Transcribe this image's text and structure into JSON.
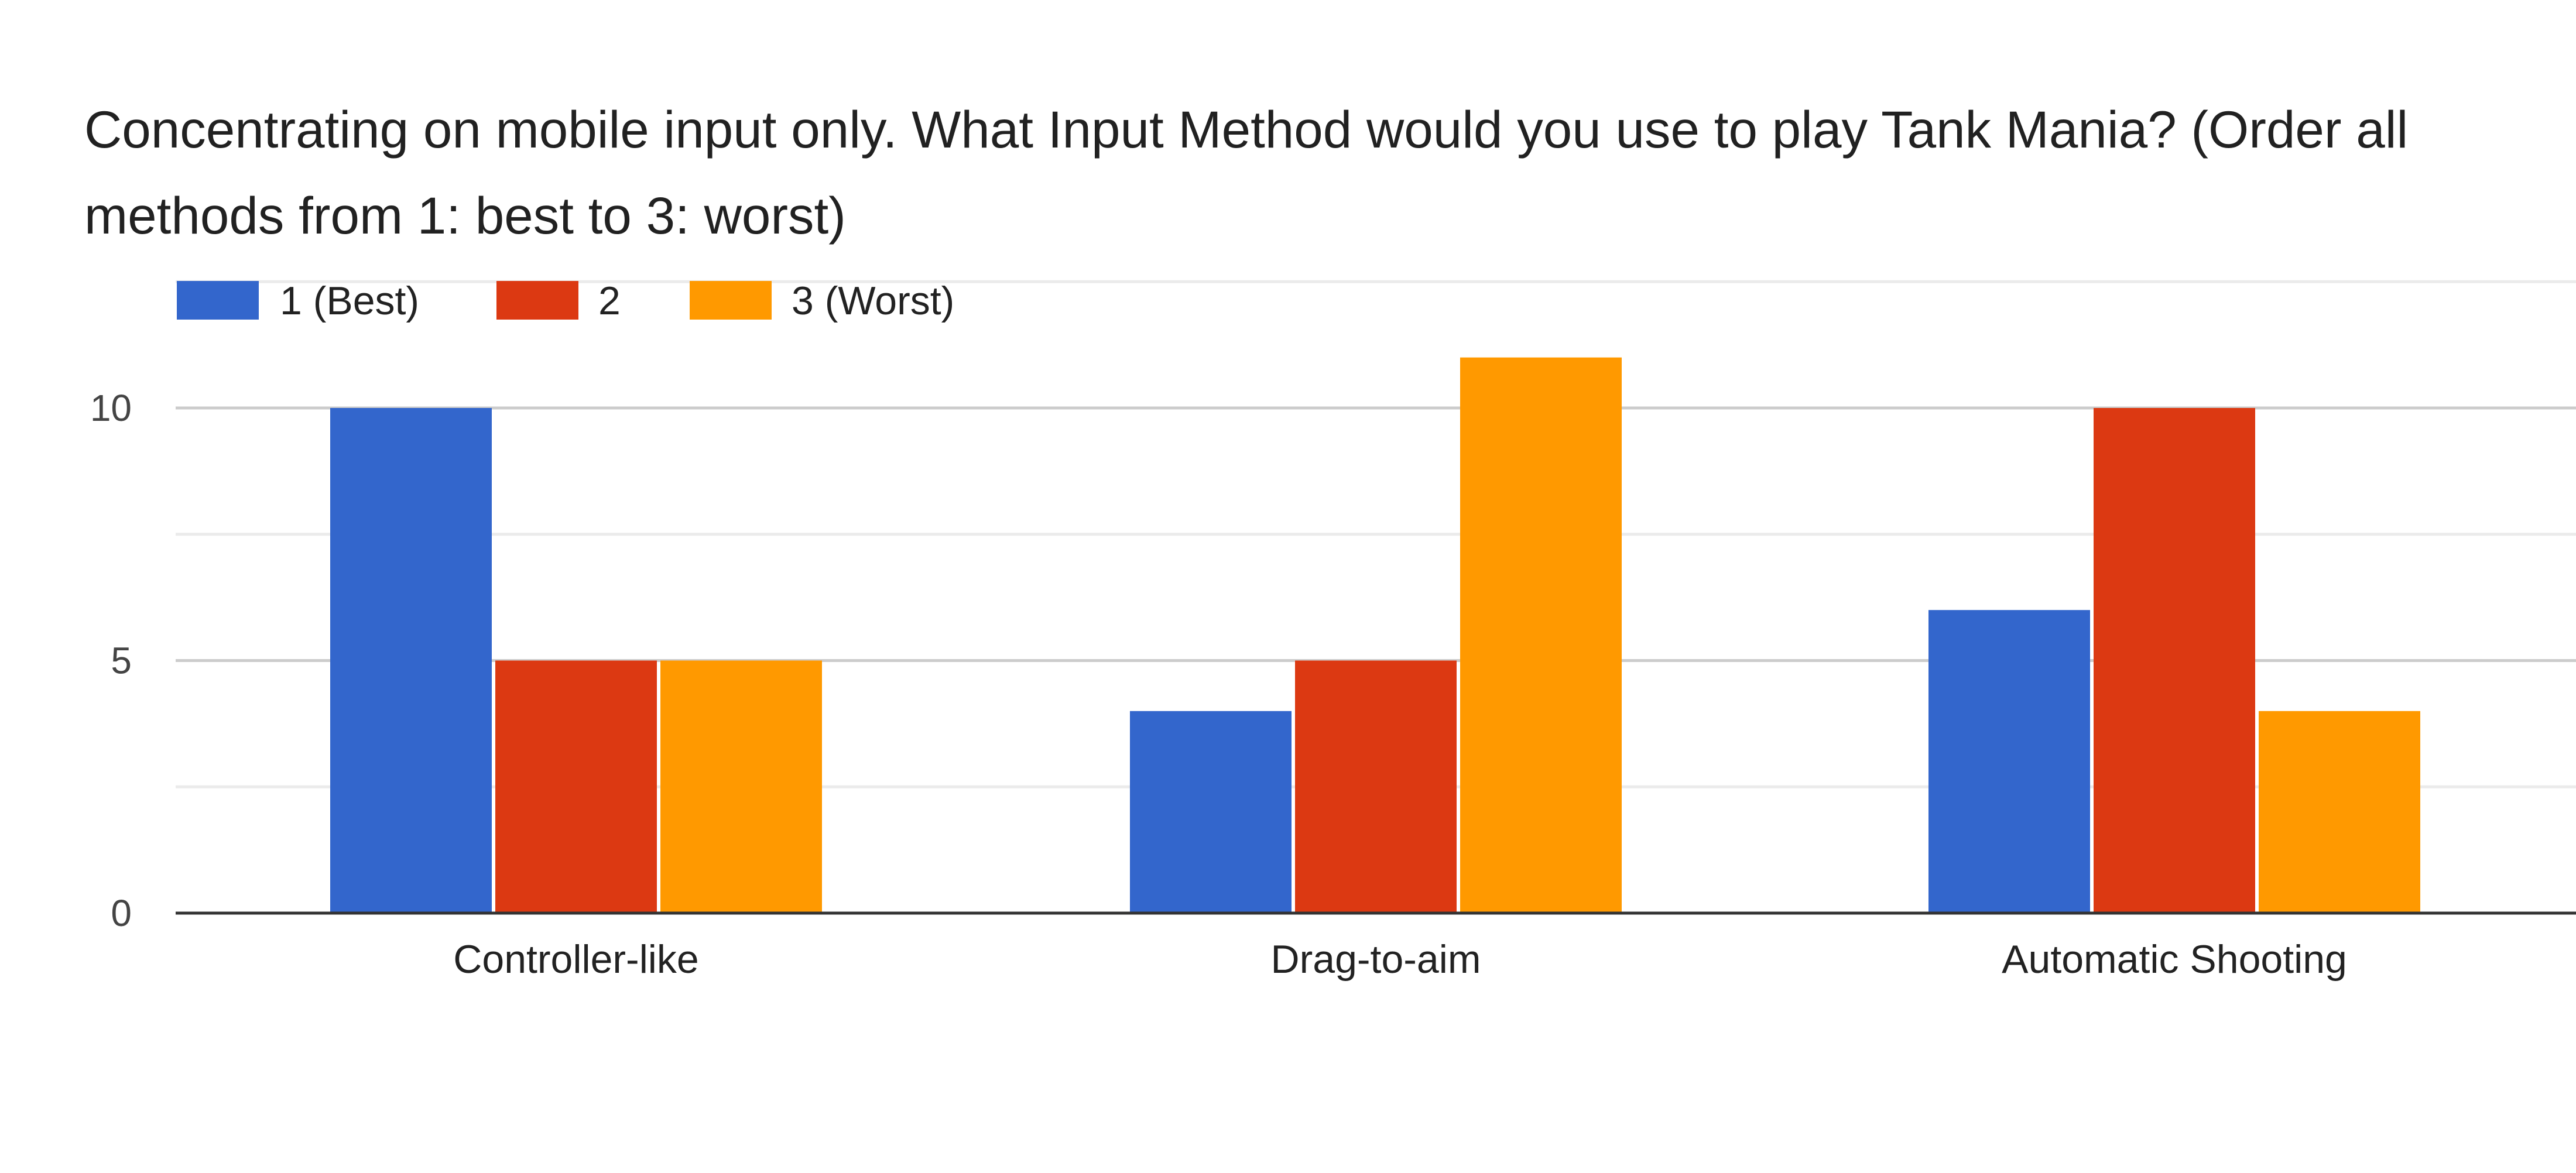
{
  "chart_data": {
    "type": "bar",
    "title": "Concentrating on mobile input only. What Input Method would you use to play Tank Mania? (Order all methods from 1: best to 3: worst)",
    "categories": [
      "Controller-like",
      "Drag-to-aim",
      "Automatic Shooting"
    ],
    "series": [
      {
        "name": "1 (Best)",
        "values": [
          10,
          4,
          6
        ],
        "color": "#3366cc"
      },
      {
        "name": "2",
        "values": [
          5,
          5,
          10
        ],
        "color": "#dc3912"
      },
      {
        "name": "3 (Worst)",
        "values": [
          5,
          11,
          4
        ],
        "color": "#ff9900"
      }
    ],
    "ylim": [
      0,
      12.5
    ],
    "yticks": [
      0,
      5,
      10
    ],
    "minor_gridlines": [
      2.5,
      7.5,
      12.5
    ],
    "grid": true,
    "legend_position": "top-left",
    "xlabel": "",
    "ylabel": ""
  }
}
